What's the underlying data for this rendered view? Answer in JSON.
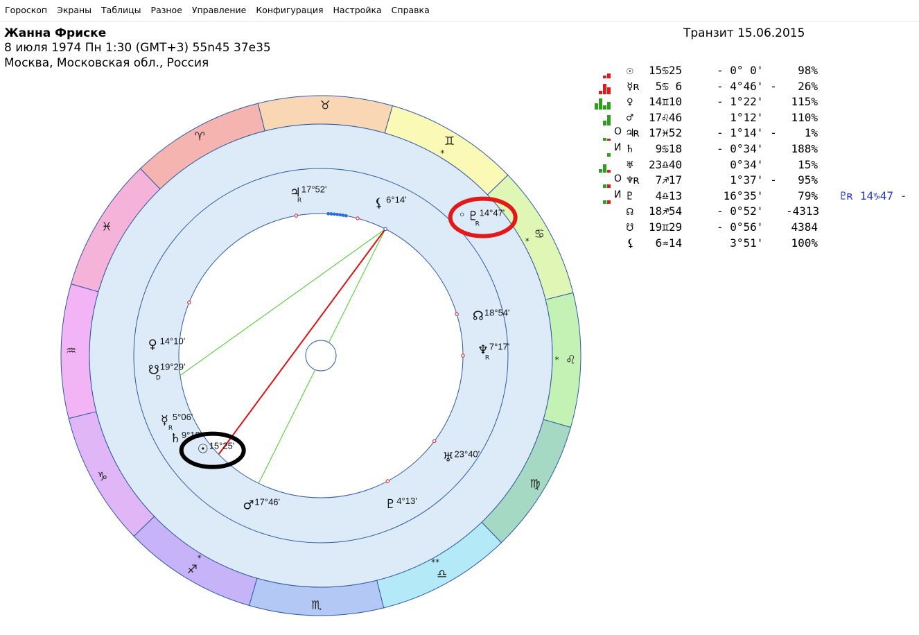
{
  "menu": [
    "Гороскоп",
    "Экраны",
    "Таблицы",
    "Разное",
    "Управление",
    "Конфигурация",
    "Настройка",
    "Справка"
  ],
  "header": {
    "name": "Жанна Фриске",
    "line2": "8 июля 1974  Пн   1:30 (GMT+3) 55n45  37e35",
    "line3": "Москва, Московская обл., Россия",
    "transit": "Транзит 15.06.2015"
  },
  "colors": {
    "bar_red": "#e81818",
    "bar_green": "#2ca01a",
    "highlight_red": "#e31818",
    "highlight_black": "#000000",
    "inner_ring": "#ddeaf7",
    "ring_border": "#2c58a8"
  },
  "zodiac": [
    {
      "glyph": "♈",
      "color": "#f6b4b1"
    },
    {
      "glyph": "♓",
      "color": "#f6b3d9"
    },
    {
      "glyph": "♒",
      "color": "#f3b4f6"
    },
    {
      "glyph": "♑",
      "color": "#e1b6f7"
    },
    {
      "glyph": "♐",
      "color": "#c7b3f7"
    },
    {
      "glyph": "♏",
      "color": "#b4c8f6"
    },
    {
      "glyph": "♎",
      "color": "#b4e9f7"
    },
    {
      "glyph": "♍",
      "color": "#a6d9c4"
    },
    {
      "glyph": "♌",
      "color": "#c4f2b5"
    },
    {
      "glyph": "♋",
      "color": "#dff6b5"
    },
    {
      "glyph": "♊",
      "color": "#fafab6"
    },
    {
      "glyph": "♉",
      "color": "#f9d6b4"
    }
  ],
  "sign_stars": [
    "",
    "",
    "",
    "",
    "*",
    "",
    "**",
    "",
    "*",
    "*",
    "*",
    ""
  ],
  "planets": [
    {
      "glyph": "♃",
      "sub": "R",
      "label": "17°52'"
    },
    {
      "glyph": "⚸",
      "sub": "",
      "label": "6°14'"
    },
    {
      "glyph": "♇",
      "sub": "R",
      "label": "14°47'"
    },
    {
      "glyph": "☊",
      "sub": "",
      "label": "18°54'"
    },
    {
      "glyph": "♆",
      "sub": "R",
      "label": "7°17'"
    },
    {
      "glyph": "♅",
      "sub": "",
      "label": "23°40'"
    },
    {
      "glyph": "♇",
      "sub": "",
      "label": "4°13'"
    },
    {
      "glyph": "♂",
      "sub": "",
      "label": "17°46'"
    },
    {
      "glyph": "☉",
      "sub": "",
      "label": "15°25'"
    },
    {
      "glyph": "♄",
      "sub": "",
      "label": "9°18'"
    },
    {
      "glyph": "☿",
      "sub": "R",
      "label": "5°06'"
    },
    {
      "glyph": "☋",
      "sub": "D",
      "label": "19°29'"
    },
    {
      "glyph": "♀",
      "sub": "",
      "label": "14°10'"
    }
  ],
  "table": [
    {
      "bars": [
        {
          "c": "r",
          "v": 0.25
        },
        {
          "c": "r",
          "v": 0.45
        }
      ],
      "mark": "",
      "glyph": "☉",
      "pos": "15♋25",
      "aspect": "- 0° 0'",
      "pct": "98%",
      "extra": ""
    },
    {
      "bars": [
        {
          "c": "r",
          "v": 0.3
        },
        {
          "c": "r",
          "v": 0.9
        },
        {
          "c": "r",
          "v": 0.6
        }
      ],
      "mark": "",
      "glyph": "☿ʀ",
      "pos": " 5♋ 6",
      "aspect": "- 4°46' -",
      "pct": "26%",
      "extra": ""
    },
    {
      "bars": [
        {
          "c": "g",
          "v": 0.6
        },
        {
          "c": "g",
          "v": 1.0
        },
        {
          "c": "g",
          "v": 0.4
        },
        {
          "c": "g",
          "v": 0.7
        }
      ],
      "mark": "",
      "glyph": "♀",
      "pos": "14♊10",
      "aspect": "- 1°22'",
      "pct": "115%",
      "extra": ""
    },
    {
      "bars": [
        {
          "c": "g",
          "v": 0.45
        },
        {
          "c": "g",
          "v": 0.9
        }
      ],
      "mark": "",
      "glyph": "♂",
      "pos": "17♌46",
      "aspect": "  1°12'",
      "pct": "110%",
      "extra": ""
    },
    {
      "bars": [
        {
          "c": "g",
          "v": 0.3
        },
        {
          "c": "r",
          "v": 0.2
        }
      ],
      "mark": "О",
      "glyph": "♃ʀ",
      "pos": "17♓52",
      "aspect": "- 1°14' -",
      "pct": "1%",
      "extra": ""
    },
    {
      "bars": [
        {
          "c": "g",
          "v": 0.3
        }
      ],
      "mark": "И",
      "glyph": "♄",
      "pos": " 9♋18",
      "aspect": "- 0°34'",
      "pct": "188%",
      "extra": ""
    },
    {
      "bars": [
        {
          "c": "g",
          "v": 0.3
        },
        {
          "c": "g",
          "v": 0.7
        },
        {
          "c": "r",
          "v": 0.2
        }
      ],
      "mark": "",
      "glyph": "♅",
      "pos": "23♎40",
      "aspect": "  0°34'",
      "pct": "15%",
      "extra": ""
    },
    {
      "bars": [
        {
          "c": "g",
          "v": 0.3
        },
        {
          "c": "r",
          "v": 0.3
        }
      ],
      "mark": "О",
      "glyph": "♆ʀ",
      "pos": " 7♐17",
      "aspect": "  1°37' -",
      "pct": "95%",
      "extra": ""
    },
    {
      "bars": [
        {
          "c": "g",
          "v": 0.3
        },
        {
          "c": "r",
          "v": 0.3
        }
      ],
      "mark": "И",
      "glyph": "♇",
      "pos": " 4♎13",
      "aspect": " 16°35'",
      "pct": "79%",
      "extra": "♇ʀ 14♑47 -"
    },
    {
      "bars": [],
      "mark": "",
      "glyph": "☊",
      "pos": "18♐54",
      "aspect": "- 0°52'",
      "pct": "-4313",
      "extra": ""
    },
    {
      "bars": [],
      "mark": "",
      "glyph": "☋",
      "pos": "19♊29",
      "aspect": "- 0°56'",
      "pct": "4384",
      "extra": ""
    },
    {
      "bars": [],
      "mark": "",
      "glyph": "⚸",
      "pos": " 6♒14",
      "aspect": "  3°51'",
      "pct": "100%",
      "extra": ""
    }
  ]
}
